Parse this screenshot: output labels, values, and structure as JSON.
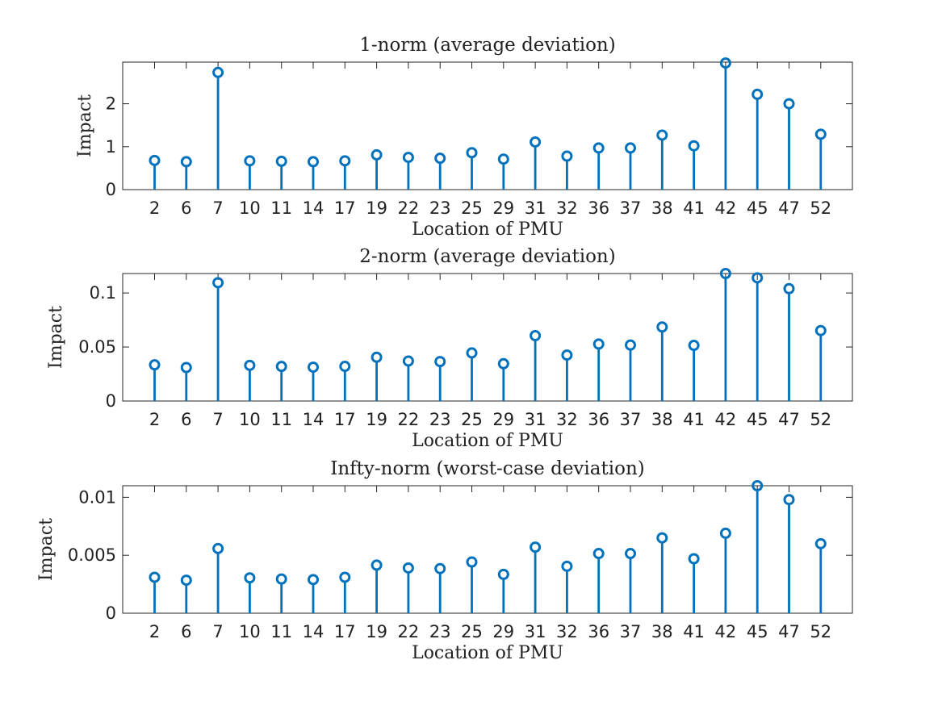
{
  "colors": {
    "series": "#0072bd",
    "axis": "#262626",
    "text": "#222222"
  },
  "chart_data": [
    {
      "type": "stem",
      "title": "1-norm (average deviation)",
      "xlabel": "Location of PMU",
      "ylabel": "Impact",
      "categories": [
        "2",
        "6",
        "7",
        "10",
        "11",
        "14",
        "17",
        "19",
        "22",
        "23",
        "25",
        "29",
        "31",
        "32",
        "36",
        "37",
        "38",
        "41",
        "42",
        "45",
        "47",
        "52"
      ],
      "values": [
        0.68,
        0.65,
        2.73,
        0.67,
        0.66,
        0.65,
        0.67,
        0.81,
        0.75,
        0.73,
        0.86,
        0.71,
        1.11,
        0.78,
        0.97,
        0.97,
        1.27,
        1.02,
        2.95,
        2.22,
        2.0,
        1.29
      ],
      "ylim": [
        0,
        2.97
      ],
      "yticks": [
        0,
        1,
        2
      ],
      "ytick_labels": [
        "0",
        "1",
        "2"
      ]
    },
    {
      "type": "stem",
      "title": "2-norm (average deviation)",
      "xlabel": "Location of PMU",
      "ylabel": "Impact",
      "categories": [
        "2",
        "6",
        "7",
        "10",
        "11",
        "14",
        "17",
        "19",
        "22",
        "23",
        "25",
        "29",
        "31",
        "32",
        "36",
        "37",
        "38",
        "41",
        "42",
        "45",
        "47",
        "52"
      ],
      "values": [
        0.0335,
        0.031,
        0.1095,
        0.033,
        0.032,
        0.0313,
        0.0321,
        0.0405,
        0.037,
        0.0365,
        0.0445,
        0.0345,
        0.0605,
        0.0425,
        0.0527,
        0.0518,
        0.0685,
        0.0515,
        0.118,
        0.114,
        0.104,
        0.0652
      ],
      "ylim": [
        0,
        0.118
      ],
      "yticks": [
        0,
        0.05,
        0.1
      ],
      "ytick_labels": [
        "0",
        "0.05",
        "0.1"
      ]
    },
    {
      "type": "stem",
      "title": "Infty-norm (worst-case deviation)",
      "xlabel": "Location of PMU",
      "ylabel": "Impact",
      "categories": [
        "2",
        "6",
        "7",
        "10",
        "11",
        "14",
        "17",
        "19",
        "22",
        "23",
        "25",
        "29",
        "31",
        "32",
        "36",
        "37",
        "38",
        "41",
        "42",
        "45",
        "47",
        "52"
      ],
      "values": [
        0.0031,
        0.00285,
        0.00558,
        0.00305,
        0.00295,
        0.0029,
        0.0031,
        0.00415,
        0.0039,
        0.00385,
        0.00442,
        0.00335,
        0.0057,
        0.00405,
        0.00515,
        0.00515,
        0.0065,
        0.0047,
        0.0069,
        0.011,
        0.0098,
        0.006
      ],
      "ylim": [
        0,
        0.011
      ],
      "yticks": [
        0,
        0.005,
        0.01
      ],
      "ytick_labels": [
        "0",
        "0.005",
        "0.01"
      ]
    }
  ]
}
